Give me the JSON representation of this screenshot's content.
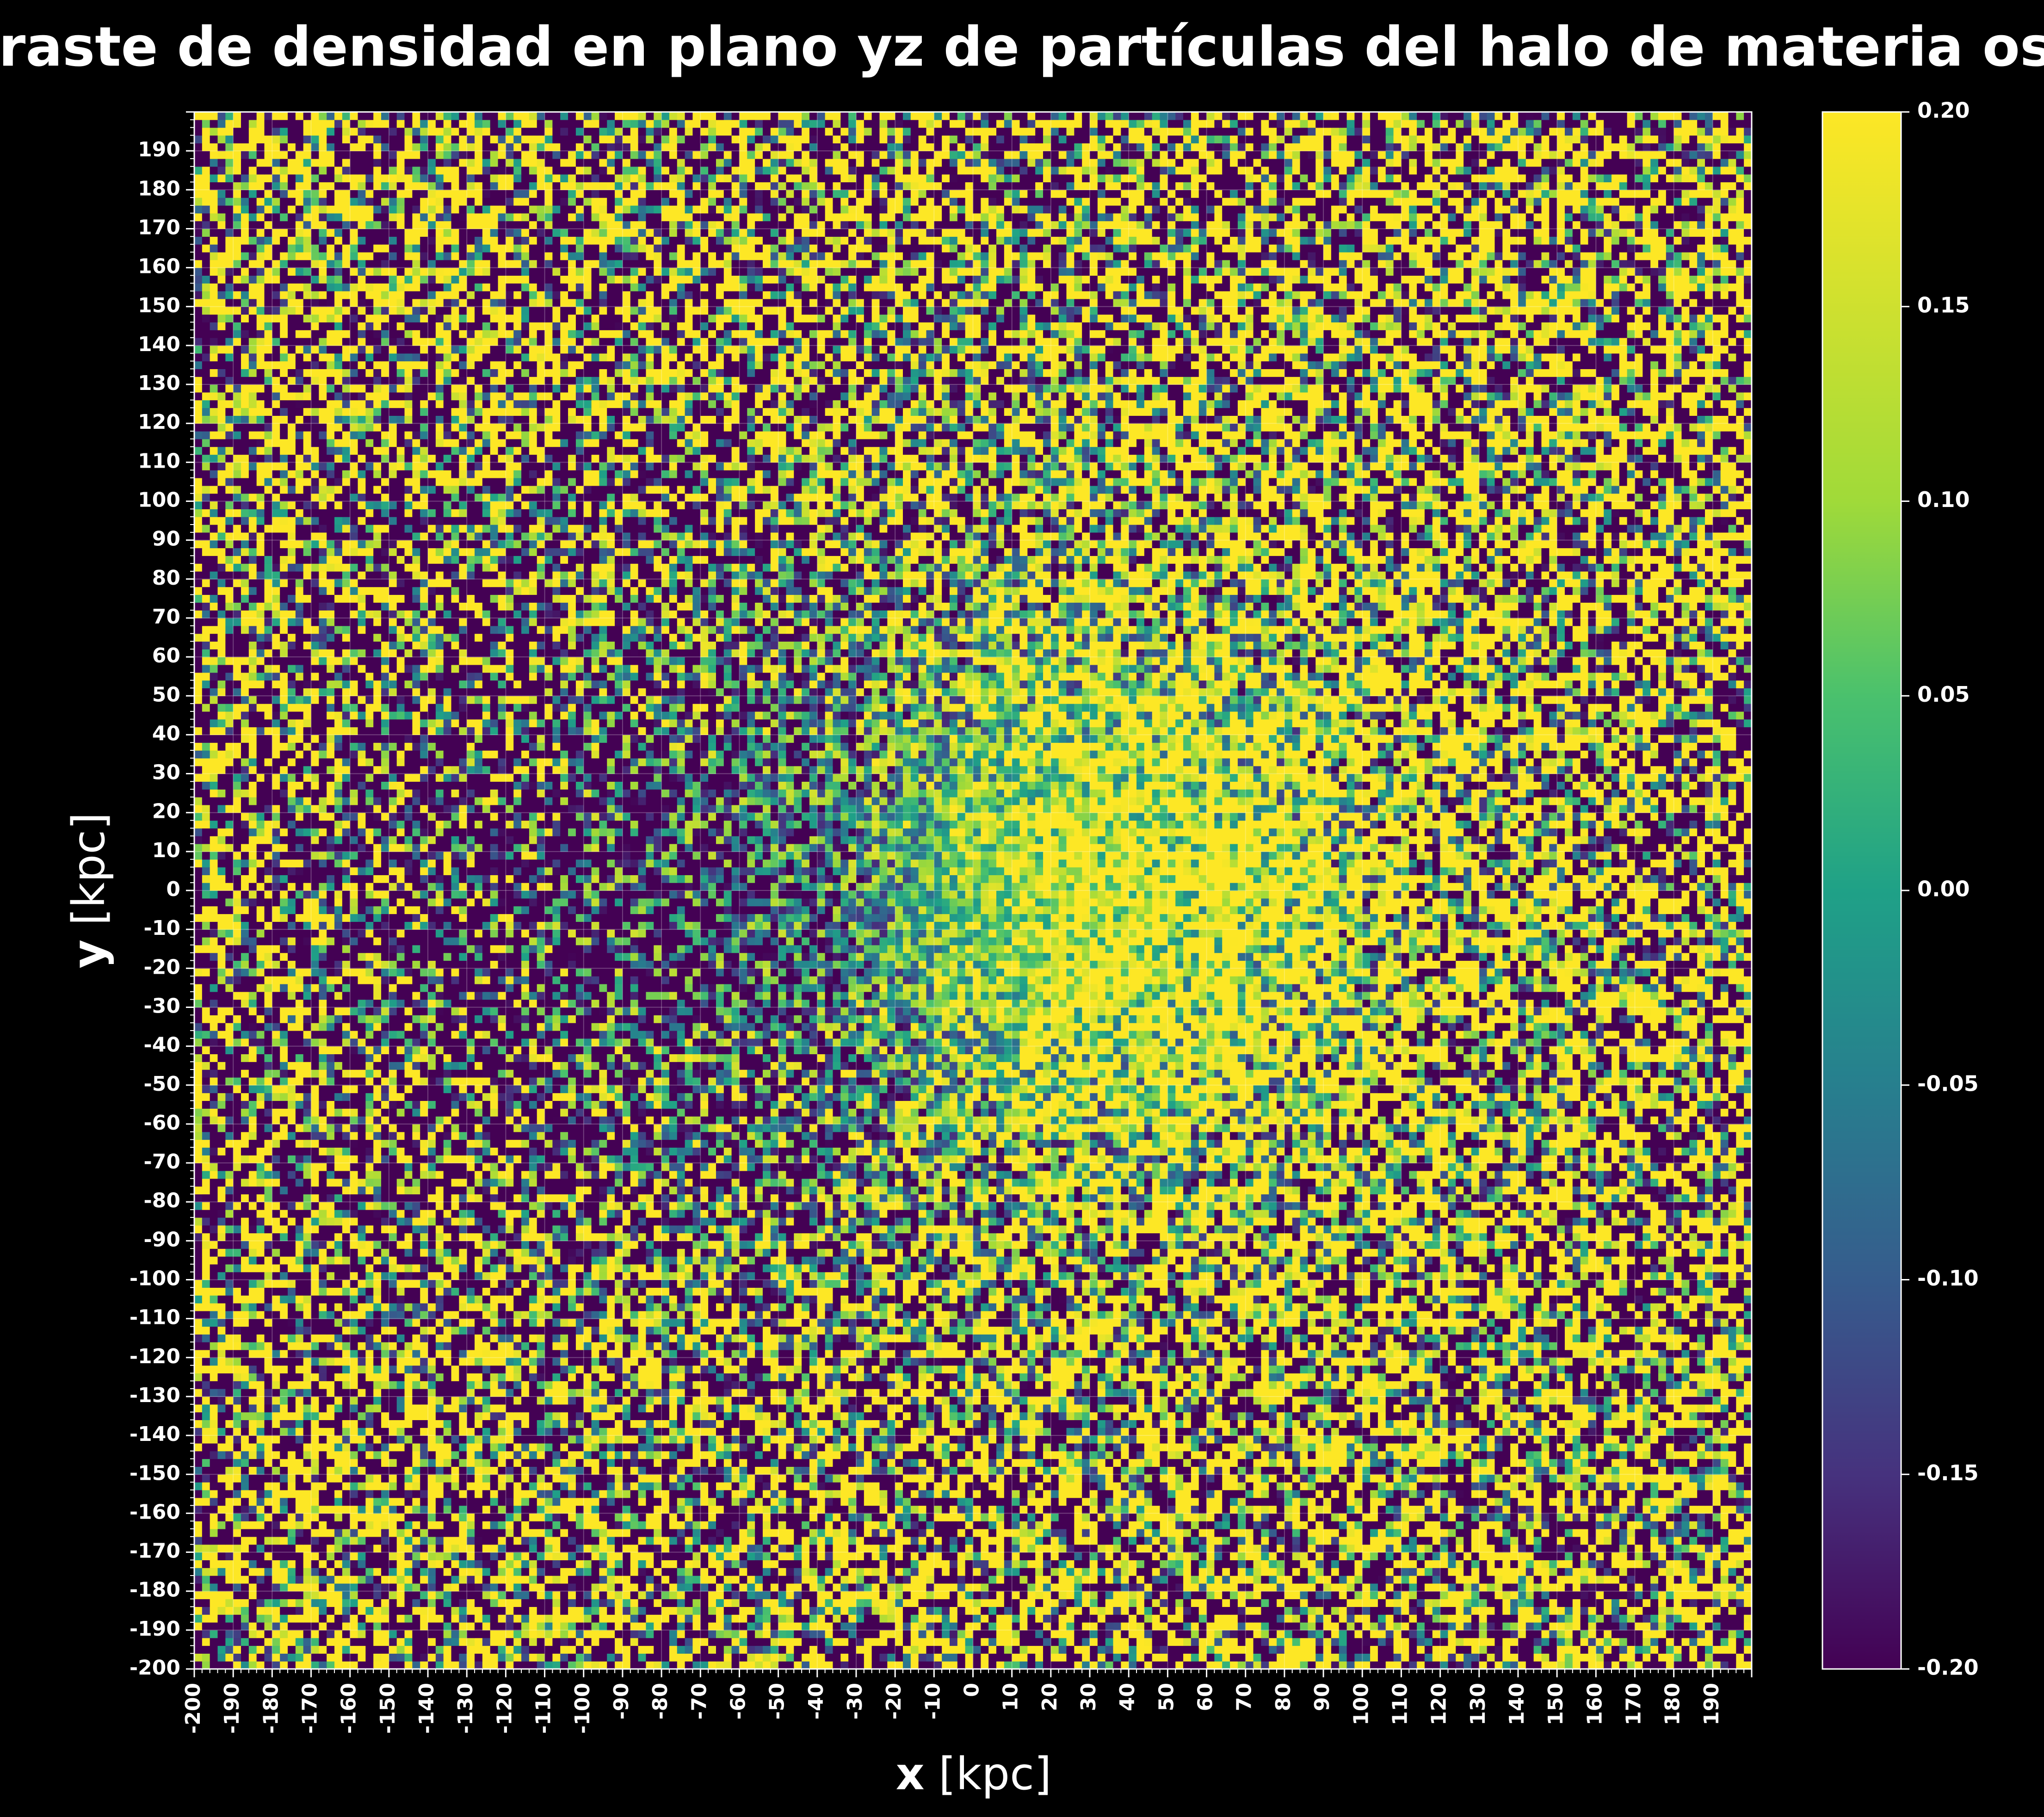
{
  "chart_data": {
    "type": "heatmap",
    "title": "Contraste de densidad en plano yz de partículas del halo de materia oscura",
    "xlabel": {
      "var": "x",
      "unit": "[kpc]"
    },
    "ylabel": {
      "var": "y",
      "unit": "[kpc]"
    },
    "xlim": [
      -200,
      200
    ],
    "ylim": [
      -200,
      200
    ],
    "grid": true,
    "colormap": "viridis",
    "color_range": [
      -0.2,
      0.2
    ],
    "xticks": [
      "-200",
      "-190",
      "-180",
      "-170",
      "-160",
      "-150",
      "-140",
      "-130",
      "-120",
      "-110",
      "-100",
      "-90",
      "-80",
      "-70",
      "-60",
      "-50",
      "-40",
      "-30",
      "-20",
      "-10",
      "0",
      "10",
      "20",
      "30",
      "40",
      "50",
      "60",
      "70",
      "80",
      "90",
      "100",
      "110",
      "120",
      "130",
      "140",
      "150",
      "160",
      "170",
      "180",
      "190"
    ],
    "yticks": [
      "-200",
      "-190",
      "-180",
      "-170",
      "-160",
      "-150",
      "-140",
      "-130",
      "-120",
      "-110",
      "-100",
      "-90",
      "-80",
      "-70",
      "-60",
      "-50",
      "-40",
      "-30",
      "-20",
      "-10",
      "0",
      "10",
      "20",
      "30",
      "40",
      "50",
      "60",
      "70",
      "80",
      "90",
      "100",
      "110",
      "120",
      "130",
      "140",
      "150",
      "160",
      "170",
      "180",
      "190"
    ],
    "colorbar_ticks": [
      "-0.20",
      "-0.15",
      "-0.10",
      "-0.05",
      "0.00",
      "0.05",
      "0.10",
      "0.15",
      "0.20"
    ],
    "field_summary": {
      "grid_resolution_kpc": 2,
      "underdense_center": {
        "x": -110,
        "y": 0,
        "value": -0.2
      },
      "overdense_center": {
        "x": 55,
        "y": 0,
        "value": 0.2
      },
      "outer_region": "noisy mixture of extremes, saturated at ±0.20"
    }
  }
}
